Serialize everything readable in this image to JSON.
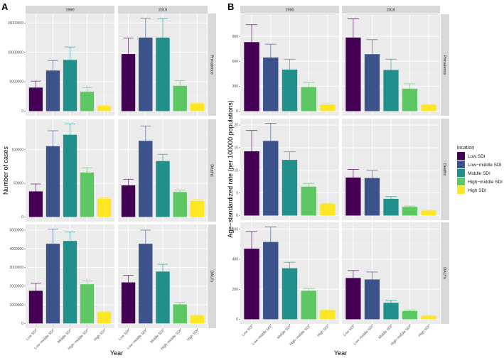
{
  "legend": {
    "title": "location",
    "items": [
      "Low SDI",
      "Low−middle SDI",
      "Middle SDI",
      "High−middle SDI",
      "High SDI"
    ],
    "colors": [
      "#440154",
      "#3B528B",
      "#21908C",
      "#5DC863",
      "#FDE725"
    ]
  },
  "chart_data": [
    {
      "panel": "A",
      "type": "bar",
      "xlabel": "Year",
      "ylabel": "Number of cases",
      "columns": [
        "1990",
        "2019"
      ],
      "rows": [
        "Prevalence",
        "Deaths",
        "DALYs"
      ],
      "categories": [
        "Low SDI",
        "Low−middle SDI",
        "Middle SDI",
        "High−middle SDI",
        "High SDI"
      ],
      "facets": {
        "Prevalence": {
          "yticks": [
            0,
            5000000,
            10000000,
            15000000
          ],
          "1990": {
            "values": [
              4000000,
              6900000,
              8700000,
              3300000,
              850000
            ],
            "upper": [
              5100000,
              8600000,
              10900000,
              4000000,
              950000
            ]
          },
          "2019": {
            "values": [
              9700000,
              12500000,
              12500000,
              4300000,
              1250000
            ],
            "upper": [
              12400000,
              15800000,
              15700000,
              5200000,
              1400000
            ]
          }
        },
        "Deaths": {
          "yticks": [
            0,
            50000,
            100000
          ],
          "1990": {
            "values": [
              38000,
              105000,
              122000,
              66000,
              27000
            ],
            "upper": [
              49000,
              128000,
              138000,
              73000,
              28500
            ]
          },
          "2019": {
            "values": [
              47000,
              113000,
              83000,
              37000,
              24000
            ],
            "upper": [
              56000,
              135000,
              93000,
              40000,
              26500
            ]
          }
        },
        "DALYs": {
          "yticks": [
            0,
            1000000,
            2000000,
            3000000,
            4000000,
            5000000
          ],
          "1990": {
            "values": [
              1750000,
              4270000,
              4420000,
              2100000,
              600000
            ],
            "upper": [
              2150000,
              5050000,
              4900000,
              2280000,
              630000
            ]
          },
          "2019": {
            "values": [
              2200000,
              4270000,
              2780000,
              1020000,
              420000
            ],
            "upper": [
              2580000,
              5000000,
              3170000,
              1130000,
              460000
            ]
          }
        }
      }
    },
    {
      "panel": "B",
      "type": "bar",
      "xlabel": "Year",
      "ylabel": "Age−standardized rate (per 100000 populations)",
      "columns": [
        "1990",
        "2019"
      ],
      "rows": [
        "Prevalence",
        "Deaths",
        "DALYs"
      ],
      "categories": [
        "Low SDI",
        "Low−middle SDI",
        "Middle SDI",
        "High−middle SDI",
        "High SDI"
      ],
      "facets": {
        "Prevalence": {
          "yticks": [
            0,
            300,
            600,
            900
          ],
          "1990": {
            "values": [
              830,
              645,
              500,
              290,
              80
            ],
            "upper": [
              1040,
              805,
              625,
              345,
              95
            ]
          },
          "2019": {
            "values": [
              885,
              685,
              495,
              270,
              75
            ],
            "upper": [
              1110,
              860,
              625,
              330,
              80
            ]
          }
        },
        "Deaths": {
          "yticks": [
            0,
            5,
            10,
            15,
            20
          ],
          "1990": {
            "values": [
              14.2,
              16.5,
              12.3,
              6.4,
              2.6
            ],
            "upper": [
              18.8,
              20.4,
              14.1,
              7.1,
              2.7
            ]
          },
          "2019": {
            "values": [
              8.4,
              8.3,
              3.7,
              1.9,
              1.1
            ],
            "upper": [
              10.2,
              10.0,
              4.2,
              2.1,
              1.2
            ]
          }
        },
        "DALYs": {
          "yticks": [
            0,
            200,
            400,
            600
          ],
          "1990": {
            "values": [
              470,
              515,
              340,
              190,
              60
            ],
            "upper": [
              585,
              615,
              380,
              205,
              62
            ]
          },
          "2019": {
            "values": [
              275,
              265,
              110,
              55,
              22
            ],
            "upper": [
              325,
              315,
              127,
              62,
              25
            ]
          }
        }
      }
    }
  ]
}
